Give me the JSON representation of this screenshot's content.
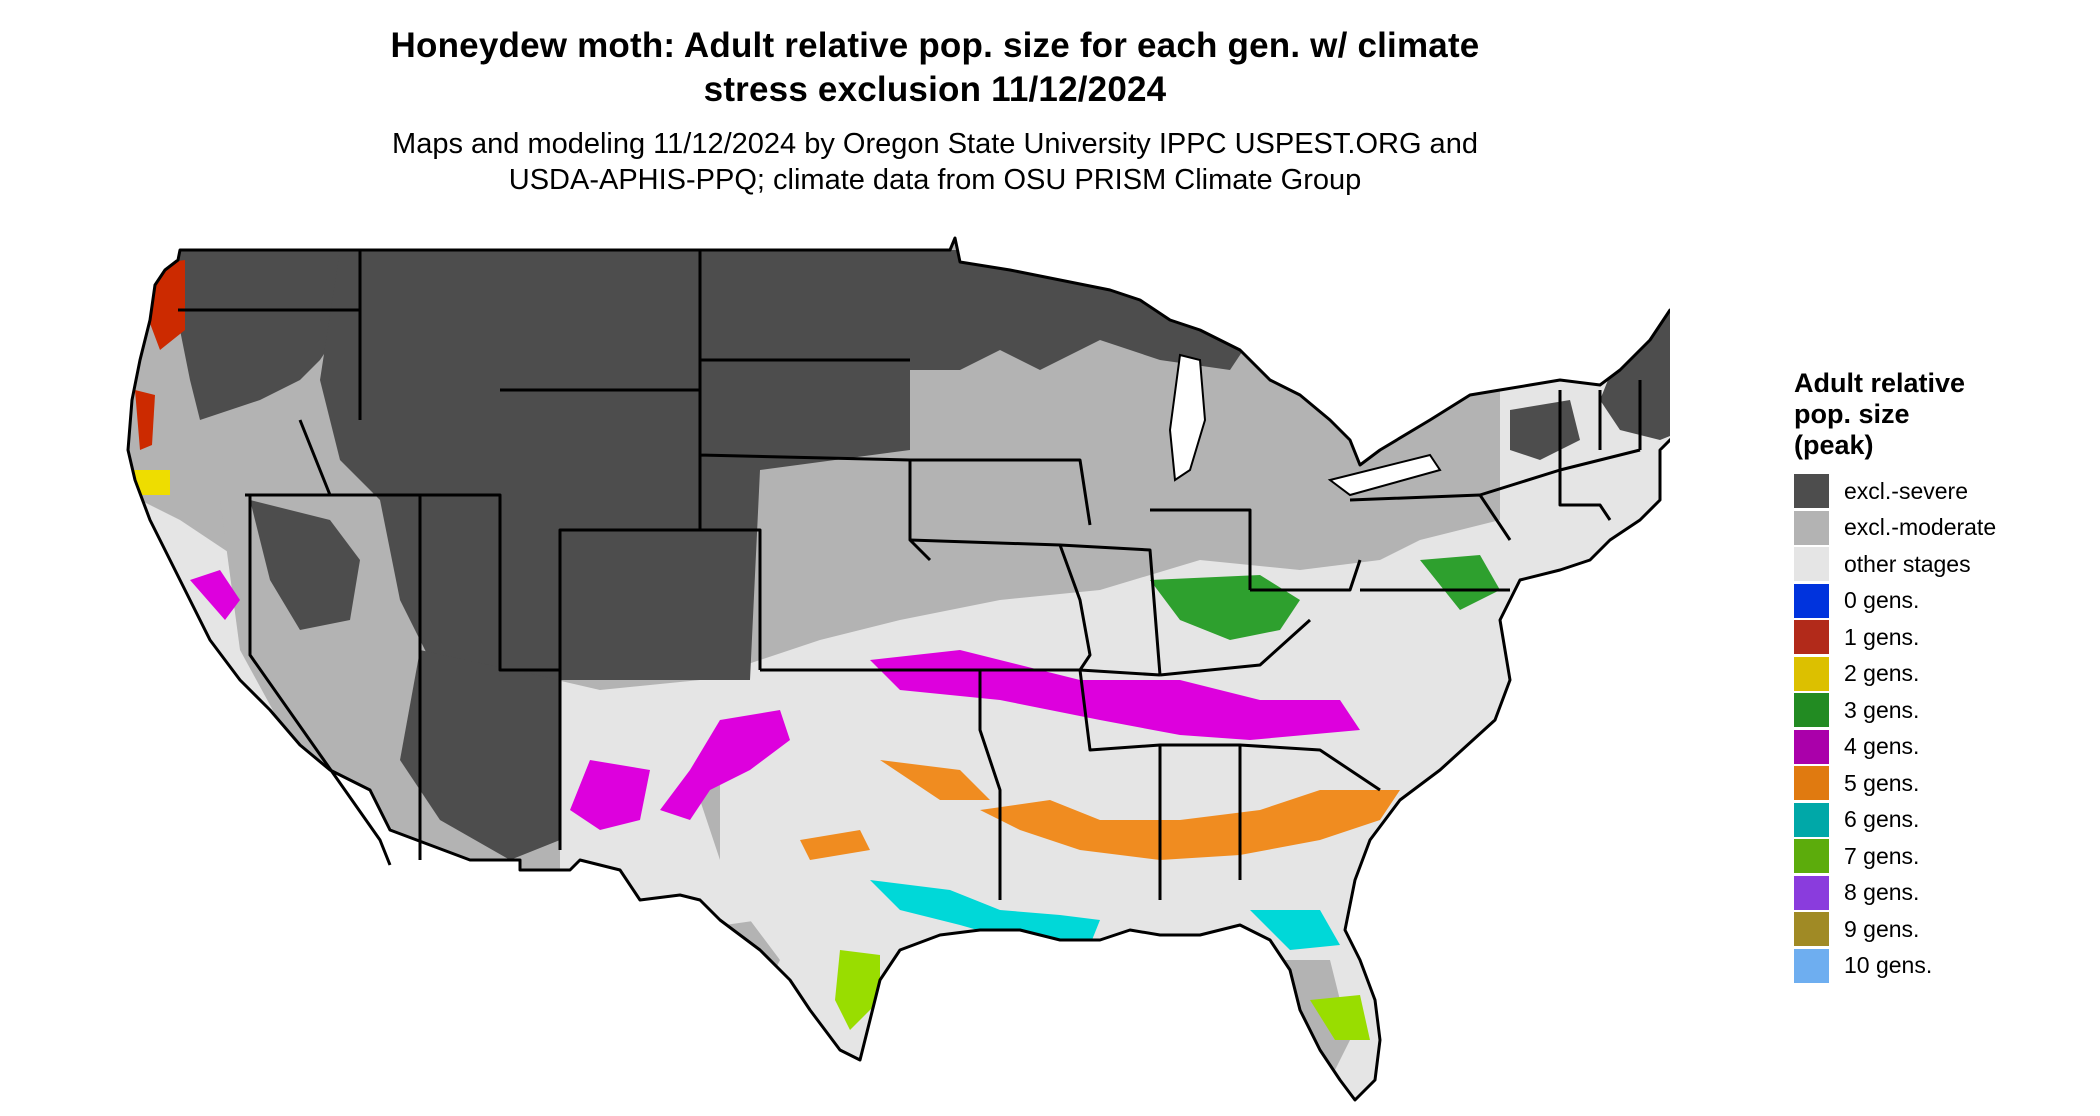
{
  "title": {
    "line1": "Honeydew moth: Adult relative pop. size for each gen. w/ climate",
    "line2": "stress exclusion 11/12/2024"
  },
  "subtitle": {
    "line1": "Maps and modeling 11/12/2024 by Oregon State University IPPC USPEST.ORG and",
    "line2": "USDA-APHIS-PPQ; climate data from OSU PRISM Climate Group"
  },
  "legend": {
    "title_line1": "Adult relative",
    "title_line2": "pop. size",
    "title_line3": "(peak)",
    "items": [
      {
        "label": "excl.-severe",
        "color": "#4d4d4d"
      },
      {
        "label": "excl.-moderate",
        "color": "#b3b3b3"
      },
      {
        "label": "other stages",
        "color": "#e5e5e5"
      },
      {
        "label": "0 gens.",
        "color": "#0033dd"
      },
      {
        "label": "1 gens.",
        "color": "#b22a1a"
      },
      {
        "label": "2 gens.",
        "color": "#dcc000"
      },
      {
        "label": "3 gens.",
        "color": "#228b22"
      },
      {
        "label": "4 gens.",
        "color": "#aa00aa"
      },
      {
        "label": "5 gens.",
        "color": "#e07a10"
      },
      {
        "label": "6 gens.",
        "color": "#00a8a8"
      },
      {
        "label": "7 gens.",
        "color": "#5cac0c"
      },
      {
        "label": "8 gens.",
        "color": "#8a3cdd"
      },
      {
        "label": "9 gens.",
        "color": "#a08a25"
      },
      {
        "label": "10 gens.",
        "color": "#6eaef0"
      }
    ]
  },
  "map": {
    "colors": {
      "severe": "#4d4d4d",
      "moderate": "#b3b3b3",
      "other": "#e5e5e5",
      "gen1": "#cc2a00",
      "gen2": "#eedd00",
      "gen3": "#2ea02e",
      "gen4": "#dd00dd",
      "gen5": "#f08c20",
      "gen6": "#00d8d8",
      "gen7": "#99dd00",
      "border": "#000000"
    }
  }
}
